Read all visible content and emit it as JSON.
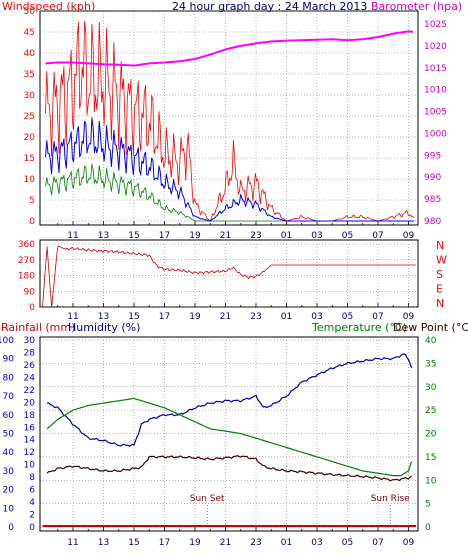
{
  "title": "24 hour graph day : 24 March 2013",
  "colors": {
    "background": "#ffffff",
    "grid": "#6f6f6f",
    "axis_tick_text": "#000080",
    "panel_bg": "#ffffff",
    "wind_gust": "#ff0000",
    "wind_avg": "#0000ff",
    "wind_low": "#008000",
    "barometer": "#ff00ff",
    "direction": "#cc0000",
    "humidity": "#0000aa",
    "temperature": "#008000",
    "dewpoint": "#400000",
    "rainfall": "#cc0000",
    "red_label": "#ff0000",
    "blue_label": "#0000ff",
    "green_label": "#008000",
    "purple_label": "#cc00cc"
  },
  "labels": {
    "windspeed": "Windspeed (kph)",
    "barometer": "Barometer (hpa)",
    "rainfall": "Rainfall (mm)",
    "humidity": "Humidity (%)",
    "temperature": "Temperature (°C)",
    "dewpoint": "Dew Point (°C)",
    "sunset": "Sun Set",
    "sunrise": "Sun Rise"
  },
  "chart_data": [
    {
      "type": "line",
      "title": "24 hour graph day : 24 March 2013",
      "x_ticks": [
        "11",
        "13",
        "15",
        "17",
        "19",
        "21",
        "23",
        "01",
        "03",
        "05",
        "07",
        "09"
      ],
      "x_range_hours": [
        9,
        33.5
      ],
      "ylabel_left": "Windspeed (kph)",
      "ylabel_right": "Barometer (hpa)",
      "y_left_range": [
        0,
        50
      ],
      "y_left_ticks": [
        0,
        5,
        10,
        15,
        20,
        25,
        30,
        35,
        40,
        45,
        50
      ],
      "y_right_range": [
        980,
        1025
      ],
      "y_right_ticks": [
        980,
        985,
        990,
        995,
        1000,
        1005,
        1010,
        1015,
        1020,
        1025
      ],
      "grid": true,
      "series": [
        {
          "name": "Barometer",
          "axis": "right",
          "x": [
            9.2,
            10,
            11,
            12,
            13,
            14,
            15,
            16,
            17,
            18,
            19,
            20,
            21,
            22,
            23,
            24,
            25,
            26,
            27,
            28,
            29,
            30,
            31,
            32,
            33,
            33.3
          ],
          "y": [
            1016,
            1016.2,
            1016.2,
            1016,
            1015.8,
            1015.7,
            1015.5,
            1016,
            1016.2,
            1016.5,
            1017,
            1018,
            1019.2,
            1020,
            1020.6,
            1021,
            1021.2,
            1021.3,
            1021.4,
            1021.5,
            1021.3,
            1021.5,
            1022,
            1022.8,
            1023.3,
            1023.2
          ]
        },
        {
          "name": "Gust",
          "axis": "left",
          "x": [
            9,
            10,
            11,
            11.5,
            12,
            13,
            14,
            15,
            16,
            17,
            18,
            18.5,
            19,
            20,
            21,
            21.5,
            22,
            23,
            24,
            25,
            26,
            27,
            28,
            29,
            30,
            31,
            32,
            33,
            33.5
          ],
          "y": [
            25,
            28,
            32,
            38,
            34,
            33,
            30,
            26,
            24,
            16,
            14,
            18,
            4,
            0,
            8,
            14,
            7,
            9,
            3,
            0,
            1,
            0,
            0,
            1,
            1,
            0,
            1,
            2,
            0
          ]
        },
        {
          "name": "Average",
          "axis": "left",
          "x": [
            9,
            10,
            11,
            12,
            13,
            14,
            15,
            16,
            17,
            18,
            19,
            20,
            21,
            22,
            23,
            24,
            25,
            26,
            27,
            28,
            29,
            30,
            31,
            32,
            33,
            33.5
          ],
          "y": [
            15,
            16,
            18,
            20,
            18,
            17,
            15,
            13,
            9,
            7,
            1,
            0,
            3,
            5,
            4,
            1,
            0,
            0,
            0,
            0,
            0,
            0,
            0,
            0,
            0,
            0
          ]
        },
        {
          "name": "Low",
          "axis": "left",
          "x": [
            9,
            10,
            11,
            12,
            13,
            14,
            15,
            16,
            17,
            18,
            19,
            20,
            21,
            22,
            23,
            24,
            25,
            26,
            27,
            28,
            29,
            30,
            31,
            32,
            33,
            33.5
          ],
          "y": [
            8,
            9,
            10,
            11,
            10,
            9,
            8,
            6,
            3,
            2,
            0,
            0,
            0,
            0,
            0,
            0,
            0,
            0,
            0,
            0,
            0,
            0,
            0,
            0,
            0,
            0
          ]
        }
      ]
    },
    {
      "type": "line",
      "title": "",
      "x_ticks": [
        "11",
        "13",
        "15",
        "17",
        "19",
        "21",
        "23",
        "01",
        "03",
        "05",
        "07",
        "09"
      ],
      "y_range": [
        0,
        360
      ],
      "y_ticks": [
        0,
        90,
        180,
        270,
        360
      ],
      "right_labels": [
        "N",
        "W",
        "S",
        "E",
        "N"
      ],
      "grid": true,
      "series": [
        {
          "name": "Wind Direction",
          "x": [
            9,
            9.3,
            9.6,
            10,
            10.5,
            11,
            12,
            13,
            14,
            15,
            16,
            16.5,
            17,
            18,
            19,
            20,
            21,
            21.5,
            22,
            22.5,
            23,
            23.5,
            24,
            25,
            26,
            27,
            28,
            29,
            30,
            31,
            32,
            33,
            33.5
          ],
          "y": [
            0,
            345,
            0,
            350,
            330,
            335,
            325,
            320,
            315,
            305,
            295,
            235,
            215,
            210,
            195,
            200,
            205,
            225,
            185,
            170,
            175,
            200,
            240,
            240,
            240,
            240,
            240,
            240,
            240,
            240,
            240,
            240,
            240
          ]
        }
      ]
    },
    {
      "type": "line",
      "title": "",
      "x_ticks": [
        "11",
        "13",
        "15",
        "17",
        "19",
        "21",
        "23",
        "01",
        "03",
        "05",
        "07",
        "09"
      ],
      "y_left_outer_label": "Rainfall (mm)",
      "y_left_outer_ticks": [
        0,
        10,
        20,
        30,
        40,
        50,
        60,
        70,
        80,
        90,
        100
      ],
      "y_left_inner_label": "Humidity (%)",
      "y_left_inner_ticks": [
        0,
        2,
        4,
        6,
        8,
        10,
        12,
        14,
        16,
        18,
        20,
        22,
        24,
        26,
        28,
        30
      ],
      "y_right_label": "Temperature (°C)Dew Point (°C)",
      "y_right_range": [
        0,
        40
      ],
      "y_right_ticks": [
        0,
        5,
        10,
        15,
        20,
        25,
        30,
        35,
        40
      ],
      "annotations": [
        {
          "text": "Sun Set",
          "x": 19.8
        },
        {
          "text": "Sun Rise",
          "x": 31.8
        }
      ],
      "grid": true,
      "series": [
        {
          "name": "Humidity",
          "axis": "right",
          "x": [
            9.3,
            10,
            11,
            12,
            13,
            14,
            15,
            15.5,
            16,
            17,
            18,
            19,
            20,
            21,
            22,
            23,
            23.5,
            24,
            25,
            26,
            27,
            28,
            29,
            30,
            31,
            32,
            32.7,
            33,
            33.3
          ],
          "y": [
            26.5,
            25.5,
            22,
            19,
            18.5,
            17.5,
            17.5,
            22,
            23,
            24,
            24,
            25.5,
            26.5,
            27,
            27,
            28,
            25.5,
            26,
            28,
            31,
            32.5,
            34,
            35,
            35.5,
            36,
            36,
            37,
            36,
            33
          ]
        },
        {
          "name": "Temperature",
          "axis": "right",
          "x": [
            9.3,
            10,
            11,
            12,
            13,
            14,
            15,
            16,
            17,
            18,
            19,
            20,
            21,
            22,
            23,
            24,
            25,
            26,
            27,
            28,
            29,
            30,
            31,
            32,
            32.5,
            33,
            33.3
          ],
          "y": [
            21,
            23,
            25,
            26,
            26.5,
            27,
            27.5,
            26.5,
            25.5,
            24,
            22.5,
            21,
            20.5,
            20,
            19,
            18,
            17,
            16,
            15,
            14,
            13,
            12,
            11.5,
            11,
            11,
            12,
            15
          ]
        },
        {
          "name": "Dew Point",
          "axis": "right",
          "x": [
            9.3,
            10,
            11,
            12,
            13,
            14,
            15,
            15.5,
            16,
            17,
            18,
            19,
            20,
            21,
            22,
            23,
            23.5,
            24,
            25,
            26,
            27,
            28,
            29,
            30,
            31,
            32,
            33,
            33.3
          ],
          "y": [
            11.5,
            12.5,
            13,
            12.5,
            12,
            12,
            12.5,
            12.8,
            15,
            15,
            15,
            14.8,
            14.5,
            14.8,
            15.2,
            14.5,
            13,
            12.5,
            12,
            11.8,
            11.5,
            11.2,
            11,
            10.8,
            10.5,
            10,
            10.5,
            11
          ]
        },
        {
          "name": "Rainfall",
          "axis": "left_outer",
          "x": [
            9,
            33.5
          ],
          "y": [
            0,
            0
          ]
        }
      ]
    }
  ]
}
